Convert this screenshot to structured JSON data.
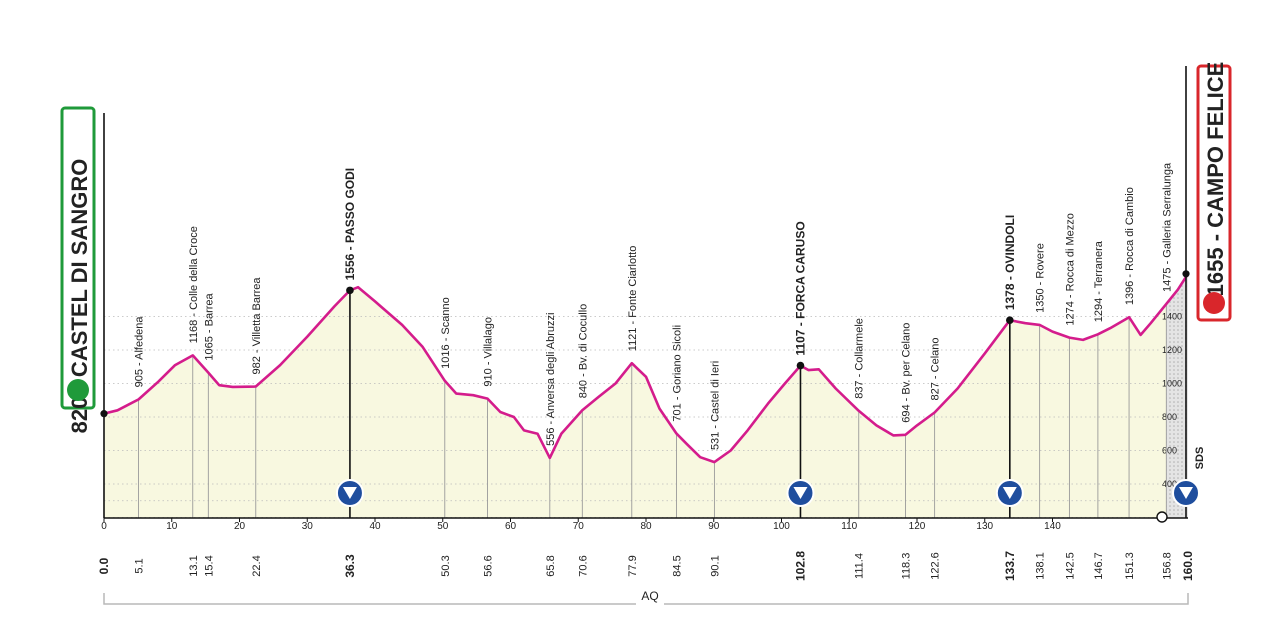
{
  "chart_data": {
    "type": "area",
    "title": "",
    "xlabel": "",
    "ylabel": "",
    "xlim": [
      0,
      160
    ],
    "ylim": [
      200,
      1700
    ],
    "grid": true,
    "colors": {
      "line": "#d41c8c",
      "fill": "#f8f8e0",
      "start": "#1f9a3a",
      "finish": "#d9262b",
      "dots": "#888888"
    },
    "series": [
      {
        "values": [
          [
            0,
            820
          ],
          [
            2,
            840
          ],
          [
            5.1,
            905
          ],
          [
            8,
            1010
          ],
          [
            10.5,
            1110
          ],
          [
            13.1,
            1168
          ],
          [
            15.4,
            1065
          ],
          [
            17,
            990
          ],
          [
            19,
            980
          ],
          [
            22.4,
            982
          ],
          [
            26,
            1110
          ],
          [
            30,
            1280
          ],
          [
            34,
            1460
          ],
          [
            36.3,
            1556
          ],
          [
            37.5,
            1575
          ],
          [
            40,
            1490
          ],
          [
            44,
            1350
          ],
          [
            47,
            1220
          ],
          [
            50.3,
            1016
          ],
          [
            52,
            940
          ],
          [
            54.5,
            930
          ],
          [
            56.6,
            910
          ],
          [
            58.5,
            830
          ],
          [
            60.5,
            800
          ],
          [
            62,
            720
          ],
          [
            64,
            700
          ],
          [
            65.8,
            556
          ],
          [
            67.5,
            700
          ],
          [
            70.6,
            840
          ],
          [
            73,
            920
          ],
          [
            75.5,
            1000
          ],
          [
            77.9,
            1121
          ],
          [
            80,
            1040
          ],
          [
            82,
            850
          ],
          [
            84.5,
            701
          ],
          [
            86,
            640
          ],
          [
            88,
            560
          ],
          [
            90.1,
            531
          ],
          [
            92.5,
            600
          ],
          [
            95,
            720
          ],
          [
            98,
            880
          ],
          [
            100.5,
            1000
          ],
          [
            102.8,
            1107
          ],
          [
            104,
            1080
          ],
          [
            105.5,
            1085
          ],
          [
            108,
            970
          ],
          [
            111.4,
            837
          ],
          [
            114,
            750
          ],
          [
            116.5,
            690
          ],
          [
            118.3,
            694
          ],
          [
            120,
            750
          ],
          [
            122.6,
            827
          ],
          [
            126,
            970
          ],
          [
            130,
            1180
          ],
          [
            133.7,
            1378
          ],
          [
            136,
            1360
          ],
          [
            138.1,
            1350
          ],
          [
            140,
            1310
          ],
          [
            142.5,
            1274
          ],
          [
            144.5,
            1260
          ],
          [
            146.7,
            1294
          ],
          [
            148.5,
            1330
          ],
          [
            151.3,
            1396
          ],
          [
            153,
            1290
          ],
          [
            154.5,
            1360
          ],
          [
            156.8,
            1475
          ],
          [
            158.5,
            1560
          ],
          [
            160,
            1655
          ]
        ]
      }
    ],
    "y_ticks": [
      400,
      600,
      800,
      1000,
      1200,
      1400
    ],
    "x_ticks": [
      0,
      10,
      20,
      30,
      40,
      50,
      60,
      70,
      80,
      90,
      100,
      110,
      120,
      130,
      140
    ],
    "start_label": "820 - CASTEL DI SANGRO",
    "finish_label": "1655 - CAMPO FELICE",
    "region_label": "AQ",
    "sds_label": "SDS",
    "places": [
      {
        "km": 0.0,
        "km_label": "0.0",
        "elev": 820,
        "label": "",
        "major": true
      },
      {
        "km": 5.1,
        "km_label": "5.1",
        "elev": 905,
        "label": "905 - Alfedena",
        "major": false
      },
      {
        "km": 13.1,
        "km_label": "13.1",
        "elev": 1168,
        "label": "1168 - Colle della Croce",
        "major": false
      },
      {
        "km": 15.4,
        "km_label": "15.4",
        "elev": 1065,
        "label": "1065 - Barrea",
        "major": false
      },
      {
        "km": 22.4,
        "km_label": "22.4",
        "elev": 982,
        "label": "982 - Villetta Barrea",
        "major": false
      },
      {
        "km": 36.3,
        "km_label": "36.3",
        "elev": 1556,
        "label": "1556 - PASSO GODI",
        "major": true
      },
      {
        "km": 50.3,
        "km_label": "50.3",
        "elev": 1016,
        "label": "1016 - Scanno",
        "major": false
      },
      {
        "km": 56.6,
        "km_label": "56.6",
        "elev": 910,
        "label": "910 - Villalago",
        "major": false
      },
      {
        "km": 65.8,
        "km_label": "65.8",
        "elev": 556,
        "label": "556 - Anversa degli Abruzzi",
        "major": false
      },
      {
        "km": 70.6,
        "km_label": "70.6",
        "elev": 840,
        "label": "840 - Bv. di Cocullo",
        "major": false
      },
      {
        "km": 77.9,
        "km_label": "77.9",
        "elev": 1121,
        "label": "1121 - Fonte Ciarlotto",
        "major": false
      },
      {
        "km": 84.5,
        "km_label": "84.5",
        "elev": 701,
        "label": "701 - Goriano Sicoli",
        "major": false
      },
      {
        "km": 90.1,
        "km_label": "90.1",
        "elev": 531,
        "label": "531 - Castel di Ieri",
        "major": false
      },
      {
        "km": 102.8,
        "km_label": "102.8",
        "elev": 1107,
        "label": "1107 - FORCA CARUSO",
        "major": true
      },
      {
        "km": 111.4,
        "km_label": "111.4",
        "elev": 837,
        "label": "837 - Collarmele",
        "major": false
      },
      {
        "km": 118.3,
        "km_label": "118.3",
        "elev": 694,
        "label": "694 - Bv. per Celano",
        "major": false
      },
      {
        "km": 122.6,
        "km_label": "122.6",
        "elev": 827,
        "label": "827 - Celano",
        "major": false
      },
      {
        "km": 133.7,
        "km_label": "133.7",
        "elev": 1378,
        "label": "1378 - OVINDOLI",
        "major": true
      },
      {
        "km": 138.1,
        "km_label": "138.1",
        "elev": 1350,
        "label": "1350 - Rovere",
        "major": false
      },
      {
        "km": 142.5,
        "km_label": "142.5",
        "elev": 1274,
        "label": "1274 - Rocca di Mezzo",
        "major": false
      },
      {
        "km": 146.7,
        "km_label": "146.7",
        "elev": 1294,
        "label": "1294 - Terranera",
        "major": false
      },
      {
        "km": 151.3,
        "km_label": "151.3",
        "elev": 1396,
        "label": "1396 - Rocca di Cambio",
        "major": false
      },
      {
        "km": 156.8,
        "km_label": "156.8",
        "elev": 1475,
        "label": "1475 - Galleria Serralunga",
        "major": false
      },
      {
        "km": 160.0,
        "km_label": "160.0",
        "elev": 1655,
        "label": "",
        "major": true
      }
    ],
    "gpm_km": [
      36.3,
      102.8,
      133.7,
      160.0
    ]
  }
}
